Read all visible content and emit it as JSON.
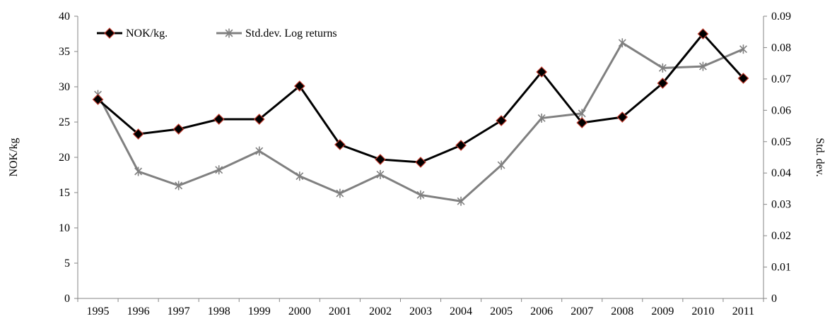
{
  "chart_data": {
    "type": "line",
    "title": "",
    "xlabel": "",
    "ylabel": "NOK/kg",
    "y2label": "Std. dev.",
    "categories": [
      "1995",
      "1996",
      "1997",
      "1998",
      "1999",
      "2000",
      "2001",
      "2002",
      "2003",
      "2004",
      "2005",
      "2006",
      "2007",
      "2008",
      "2009",
      "2010",
      "2011"
    ],
    "ylim": [
      0,
      40
    ],
    "y_ticks": [
      "0",
      "5",
      "10",
      "15",
      "20",
      "25",
      "30",
      "35",
      "40"
    ],
    "y_tick_values": [
      0,
      5,
      10,
      15,
      20,
      25,
      30,
      35,
      40
    ],
    "y2lim": [
      0,
      0.09
    ],
    "y2_ticks": [
      "0",
      "0.01",
      "0.02",
      "0.03",
      "0.04",
      "0.05",
      "0.06",
      "0.07",
      "0.08",
      "0.09"
    ],
    "y2_tick_values": [
      0,
      0.01,
      0.02,
      0.03,
      0.04,
      0.05,
      0.06,
      0.07,
      0.08,
      0.09
    ],
    "grid": false,
    "legend_position": "top-left",
    "series": [
      {
        "name": "NOK/kg.",
        "axis": "left",
        "color": "#000000",
        "marker": "diamond",
        "marker_fill": "#000000",
        "marker_edge": "#c0392b",
        "values": [
          28.2,
          23.3,
          24.0,
          25.4,
          25.4,
          30.1,
          21.8,
          19.7,
          19.3,
          21.7,
          25.2,
          32.1,
          24.9,
          25.7,
          30.5,
          37.5,
          31.2
        ]
      },
      {
        "name": "Std.dev. Log returns",
        "axis": "right",
        "color": "#808080",
        "marker": "asterisk",
        "values": [
          0.065,
          0.0405,
          0.036,
          0.041,
          0.047,
          0.039,
          0.0335,
          0.0395,
          0.033,
          0.031,
          0.0425,
          0.0575,
          0.059,
          0.0815,
          0.0735,
          0.074,
          0.0795
        ]
      }
    ]
  }
}
